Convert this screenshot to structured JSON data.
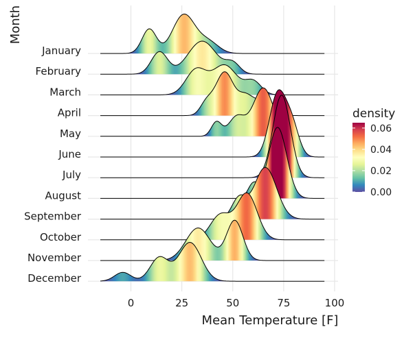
{
  "chart_data": {
    "type": "ridgeline",
    "title": "",
    "xlabel": "Mean Temperature [F]",
    "ylabel": "Month",
    "xlim": [
      -15,
      95
    ],
    "x_ticks": [
      0,
      25,
      50,
      75,
      100
    ],
    "x_tick_labels": [
      "0",
      "25",
      "50",
      "75",
      "100"
    ],
    "grid": true,
    "fill_scale": {
      "name": "density",
      "palette": "Spectral (reversed)",
      "min": 0.0,
      "max": 0.065,
      "ticks": [
        0.0,
        0.02,
        0.04,
        0.06
      ],
      "tick_labels": [
        "0.00",
        "0.02",
        "0.04",
        "0.06"
      ],
      "colors": [
        "#5e4fa2",
        "#3288bd",
        "#66c2a5",
        "#abdda4",
        "#e6f598",
        "#ffffbf",
        "#fee08b",
        "#fdae61",
        "#f46d43",
        "#d53e4f",
        "#9e0142"
      ]
    },
    "legend_position": "right",
    "series": [
      {
        "name": "January",
        "peaks": [
          {
            "x": 9,
            "sd": 3.5,
            "w": 0.24
          },
          {
            "x": 26,
            "sd": 5.5,
            "w": 0.6
          },
          {
            "x": 38,
            "sd": 5,
            "w": 0.16
          }
        ]
      },
      {
        "name": "February",
        "peaks": [
          {
            "x": 14,
            "sd": 4,
            "w": 0.25
          },
          {
            "x": 35,
            "sd": 7,
            "w": 0.65
          },
          {
            "x": 50,
            "sd": 3.5,
            "w": 0.1
          }
        ]
      },
      {
        "name": "March",
        "peaks": [
          {
            "x": 32,
            "sd": 5,
            "w": 0.35
          },
          {
            "x": 46,
            "sd": 6,
            "w": 0.5
          },
          {
            "x": 60,
            "sd": 4,
            "w": 0.15
          }
        ]
      },
      {
        "name": "April",
        "peaks": [
          {
            "x": 37,
            "sd": 3,
            "w": 0.1
          },
          {
            "x": 46,
            "sd": 4.5,
            "w": 0.55
          },
          {
            "x": 56,
            "sd": 3.5,
            "w": 0.15
          },
          {
            "x": 64,
            "sd": 5,
            "w": 0.2
          }
        ]
      },
      {
        "name": "May",
        "peaks": [
          {
            "x": 42,
            "sd": 2.5,
            "w": 0.1
          },
          {
            "x": 52,
            "sd": 4,
            "w": 0.22
          },
          {
            "x": 65,
            "sd": 5,
            "w": 0.68
          }
        ]
      },
      {
        "name": "June",
        "peaks": [
          {
            "x": 72,
            "sd": 4,
            "w": 0.7
          },
          {
            "x": 79,
            "sd": 3.5,
            "w": 0.3
          }
        ]
      },
      {
        "name": "July",
        "peaks": [
          {
            "x": 74,
            "sd": 4.3,
            "w": 1.0
          }
        ]
      },
      {
        "name": "August",
        "peaks": [
          {
            "x": 72,
            "sd": 4.5,
            "w": 0.9
          },
          {
            "x": 60,
            "sd": 2.5,
            "w": 0.1
          }
        ]
      },
      {
        "name": "September",
        "peaks": [
          {
            "x": 53,
            "sd": 3.5,
            "w": 0.2
          },
          {
            "x": 66,
            "sd": 5.5,
            "w": 0.8
          }
        ]
      },
      {
        "name": "October",
        "peaks": [
          {
            "x": 44,
            "sd": 5,
            "w": 0.35
          },
          {
            "x": 57,
            "sd": 5,
            "w": 0.65
          }
        ]
      },
      {
        "name": "November",
        "peaks": [
          {
            "x": 33,
            "sd": 6,
            "w": 0.55
          },
          {
            "x": 51,
            "sd": 4,
            "w": 0.45
          }
        ]
      },
      {
        "name": "December",
        "peaks": [
          {
            "x": -4,
            "sd": 4,
            "w": 0.1
          },
          {
            "x": 14,
            "sd": 4.5,
            "w": 0.3
          },
          {
            "x": 29,
            "sd": 5.5,
            "w": 0.6
          }
        ]
      }
    ]
  }
}
